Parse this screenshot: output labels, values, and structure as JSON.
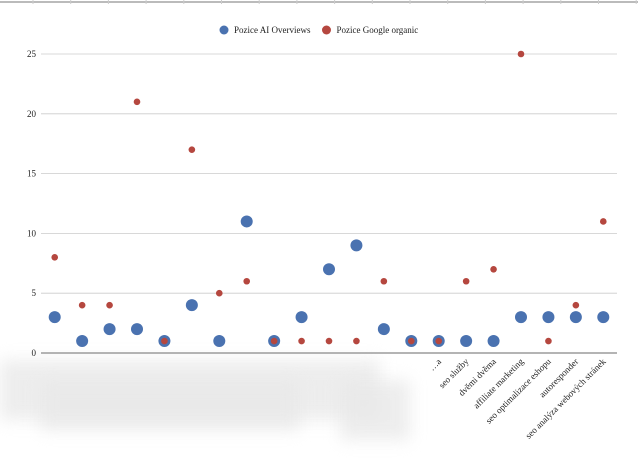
{
  "chart_data": {
    "type": "scatter",
    "title": "",
    "xlabel": "",
    "ylabel": "",
    "ylim": [
      0,
      25
    ],
    "yticks": [
      0,
      5,
      10,
      15,
      20,
      25
    ],
    "grid": true,
    "legend_position": "top-center",
    "categories": [
      "",
      "",
      "",
      "",
      "",
      "",
      "",
      "",
      "",
      "",
      "",
      "",
      "",
      "",
      "…a",
      "seo služby",
      "dvěmi dvěma",
      "affiliate marketing",
      "seo optimalizace eshopu",
      "autoresponder",
      "seo analýza webových stránek"
    ],
    "series": [
      {
        "name": "Pozice AI Overviews",
        "color": "#4a72b0",
        "values": [
          3,
          1,
          2,
          2,
          1,
          4,
          1,
          11,
          1,
          3,
          7,
          9,
          2,
          1,
          1,
          1,
          1,
          3,
          3,
          3,
          3
        ]
      },
      {
        "name": "Pozice Google organic",
        "color": "#b5473f",
        "values": [
          8,
          4,
          4,
          21,
          1,
          17,
          5,
          6,
          1,
          1,
          1,
          1,
          6,
          1,
          1,
          6,
          7,
          25,
          1,
          4,
          11
        ]
      }
    ]
  }
}
